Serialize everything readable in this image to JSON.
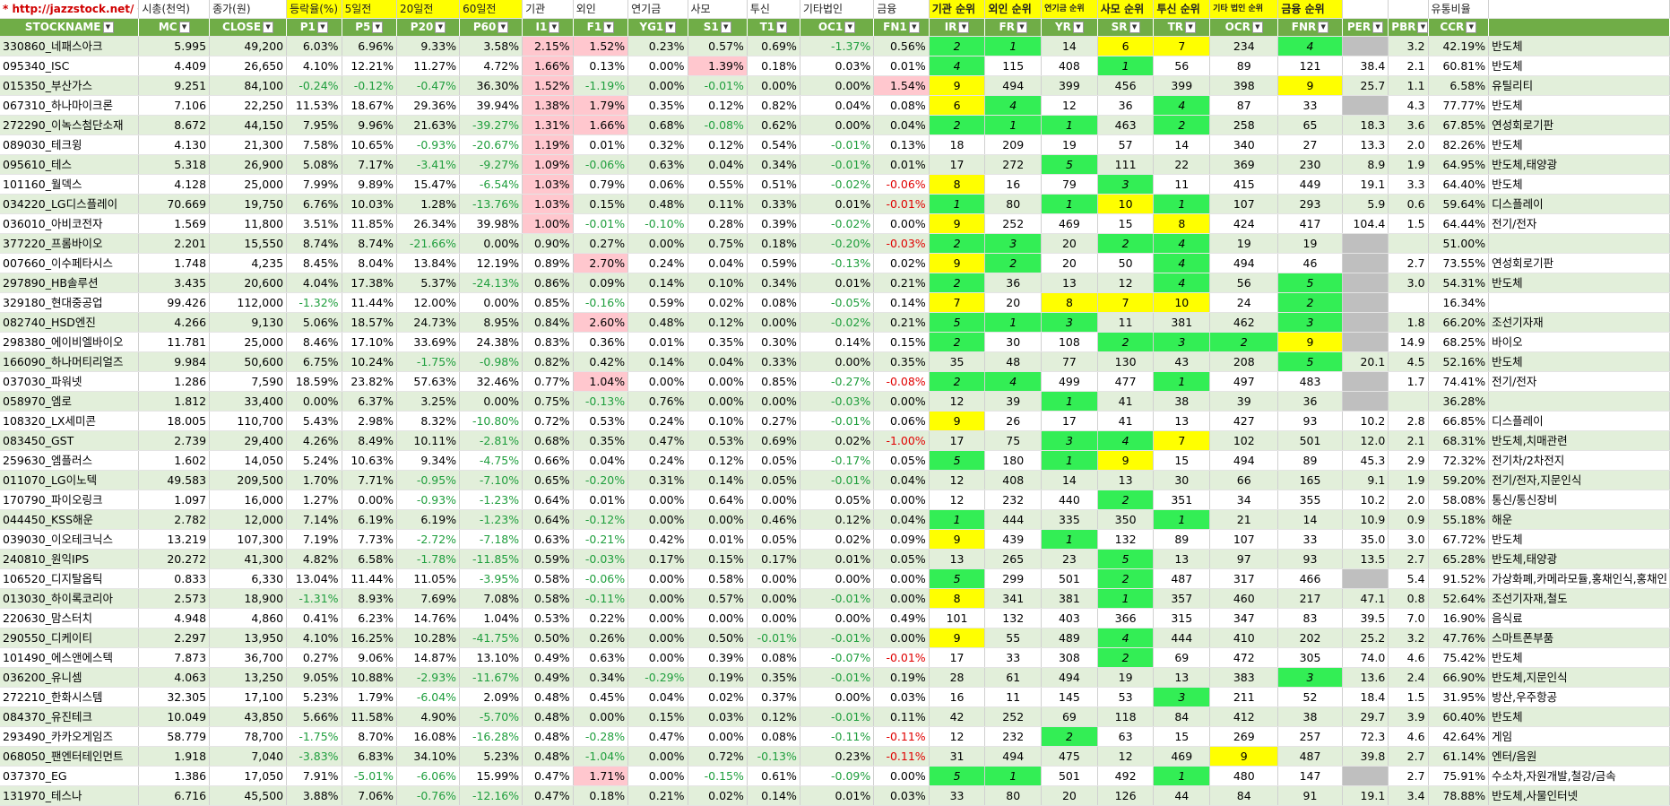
{
  "top_header": [
    "* http://jazzstock.net/ 활용",
    "시총(천억)",
    "종가(원)",
    "등락율(%)",
    "5일전",
    "20일전",
    "60일전",
    "기관",
    "외인",
    "연기금",
    "사모",
    "투신",
    "기타법인",
    "금융",
    "기관 순위",
    "외인 순위",
    "연기금 순위",
    "사모 순위",
    "투신 순위",
    "기타 법인 순위",
    "금융 순위",
    "",
    "",
    "유통비율",
    ""
  ],
  "columns": [
    "STOCKNAME",
    "MC",
    "CLOSE",
    "P1",
    "P5",
    "P20",
    "P60",
    "I1",
    "F1",
    "YG1",
    "S1",
    "T1",
    "OC1",
    "FN1",
    "IR",
    "FR",
    "YR",
    "SR",
    "TR",
    "OCR",
    "FNR",
    "PER",
    "PBR",
    "CCR",
    ""
  ],
  "rows": [
    [
      "330860_네패스아크",
      "5.995",
      "49,200",
      "6.03%",
      "6.96%",
      "9.33%",
      "3.58%",
      "2.15%",
      "1.52%",
      "0.23%",
      "0.57%",
      "0.69%",
      "-1.37%",
      "0.56%",
      "2",
      "1",
      "14",
      "6",
      "7",
      "234",
      "4",
      "",
      "3.2",
      "42.19%",
      "반도체"
    ],
    [
      "095340_ISC",
      "4.409",
      "26,650",
      "4.10%",
      "12.21%",
      "11.27%",
      "4.72%",
      "1.66%",
      "0.13%",
      "0.00%",
      "1.39%",
      "0.18%",
      "0.03%",
      "0.01%",
      "4",
      "115",
      "408",
      "1",
      "56",
      "89",
      "121",
      "38.4",
      "2.1",
      "60.81%",
      "반도체"
    ],
    [
      "015350_부산가스",
      "9.251",
      "84,100",
      "-0.24%",
      "-0.12%",
      "-0.47%",
      "36.30%",
      "1.52%",
      "-1.19%",
      "0.00%",
      "-0.01%",
      "0.00%",
      "0.00%",
      "1.54%",
      "9",
      "494",
      "399",
      "456",
      "399",
      "398",
      "9",
      "25.7",
      "1.1",
      "6.58%",
      "유틸리티"
    ],
    [
      "067310_하나마이크론",
      "7.106",
      "22,250",
      "11.53%",
      "18.67%",
      "29.36%",
      "39.94%",
      "1.38%",
      "1.79%",
      "0.35%",
      "0.12%",
      "0.82%",
      "0.04%",
      "0.08%",
      "6",
      "4",
      "12",
      "36",
      "4",
      "87",
      "33",
      "",
      "4.3",
      "77.77%",
      "반도체"
    ],
    [
      "272290_이녹스첨단소재",
      "8.672",
      "44,150",
      "7.95%",
      "9.96%",
      "21.63%",
      "-39.27%",
      "1.31%",
      "1.66%",
      "0.68%",
      "-0.08%",
      "0.62%",
      "0.00%",
      "0.04%",
      "2",
      "1",
      "1",
      "463",
      "2",
      "258",
      "65",
      "18.3",
      "3.6",
      "67.85%",
      "연성회로기판"
    ],
    [
      "089030_테크윙",
      "4.130",
      "21,300",
      "7.58%",
      "10.65%",
      "-0.93%",
      "-20.67%",
      "1.19%",
      "0.01%",
      "0.32%",
      "0.12%",
      "0.54%",
      "-0.01%",
      "0.13%",
      "18",
      "209",
      "19",
      "57",
      "14",
      "340",
      "27",
      "13.3",
      "2.0",
      "82.26%",
      "반도체"
    ],
    [
      "095610_테스",
      "5.318",
      "26,900",
      "5.08%",
      "7.17%",
      "-3.41%",
      "-9.27%",
      "1.09%",
      "-0.06%",
      "0.63%",
      "0.04%",
      "0.34%",
      "-0.01%",
      "0.01%",
      "17",
      "272",
      "5",
      "111",
      "22",
      "369",
      "230",
      "8.9",
      "1.9",
      "64.95%",
      "반도체,태양광"
    ],
    [
      "101160_월덱스",
      "4.128",
      "25,000",
      "7.99%",
      "9.89%",
      "15.47%",
      "-6.54%",
      "1.03%",
      "0.79%",
      "0.06%",
      "0.55%",
      "0.51%",
      "-0.02%",
      "-0.06%",
      "8",
      "16",
      "79",
      "3",
      "11",
      "415",
      "449",
      "19.1",
      "3.3",
      "64.40%",
      "반도체"
    ],
    [
      "034220_LG디스플레이",
      "70.669",
      "19,750",
      "6.76%",
      "10.03%",
      "1.28%",
      "-13.76%",
      "1.03%",
      "0.15%",
      "0.48%",
      "0.11%",
      "0.33%",
      "0.01%",
      "-0.01%",
      "1",
      "80",
      "1",
      "10",
      "1",
      "107",
      "293",
      "5.9",
      "0.6",
      "59.64%",
      "디스플레이"
    ],
    [
      "036010_아비코전자",
      "1.569",
      "11,800",
      "3.51%",
      "11.85%",
      "26.34%",
      "39.98%",
      "1.00%",
      "-0.01%",
      "-0.10%",
      "0.28%",
      "0.39%",
      "-0.02%",
      "0.00%",
      "9",
      "252",
      "469",
      "15",
      "8",
      "424",
      "417",
      "104.4",
      "1.5",
      "64.44%",
      "전기/전자"
    ],
    [
      "377220_프롬바이오",
      "2.201",
      "15,550",
      "8.74%",
      "8.74%",
      "-21.66%",
      "0.00%",
      "0.90%",
      "0.27%",
      "0.00%",
      "0.75%",
      "0.18%",
      "-0.20%",
      "-0.03%",
      "2",
      "3",
      "20",
      "2",
      "4",
      "19",
      "19",
      "",
      "",
      "51.00%",
      ""
    ],
    [
      "007660_이수페타시스",
      "1.748",
      "4,235",
      "8.45%",
      "8.04%",
      "13.84%",
      "12.19%",
      "0.89%",
      "2.70%",
      "0.24%",
      "0.04%",
      "0.59%",
      "-0.13%",
      "0.02%",
      "9",
      "2",
      "20",
      "50",
      "4",
      "494",
      "46",
      "",
      "2.7",
      "73.55%",
      "연성회로기판"
    ],
    [
      "297890_HB솔루션",
      "3.435",
      "20,600",
      "4.04%",
      "17.38%",
      "5.37%",
      "-24.13%",
      "0.86%",
      "0.09%",
      "0.14%",
      "0.10%",
      "0.34%",
      "0.01%",
      "0.21%",
      "2",
      "36",
      "13",
      "12",
      "4",
      "56",
      "5",
      "",
      "3.0",
      "54.31%",
      "반도체"
    ],
    [
      "329180_현대중공업",
      "99.426",
      "112,000",
      "-1.32%",
      "11.44%",
      "12.00%",
      "0.00%",
      "0.85%",
      "-0.16%",
      "0.59%",
      "0.02%",
      "0.08%",
      "-0.05%",
      "0.14%",
      "7",
      "20",
      "8",
      "7",
      "10",
      "24",
      "2",
      "",
      "",
      "16.34%",
      ""
    ],
    [
      "082740_HSD엔진",
      "4.266",
      "9,130",
      "5.06%",
      "18.57%",
      "24.73%",
      "8.95%",
      "0.84%",
      "2.60%",
      "0.48%",
      "0.12%",
      "0.00%",
      "-0.02%",
      "0.21%",
      "5",
      "1",
      "3",
      "11",
      "381",
      "462",
      "3",
      "",
      "1.8",
      "66.20%",
      "조선기자재"
    ],
    [
      "298380_에이비엘바이오",
      "11.781",
      "25,000",
      "8.46%",
      "17.10%",
      "33.69%",
      "24.38%",
      "0.83%",
      "0.36%",
      "0.01%",
      "0.35%",
      "0.30%",
      "0.14%",
      "0.15%",
      "2",
      "30",
      "108",
      "2",
      "3",
      "2",
      "9",
      "",
      "14.9",
      "68.25%",
      "바이오"
    ],
    [
      "166090_하나머티리얼즈",
      "9.984",
      "50,600",
      "6.75%",
      "10.24%",
      "-1.75%",
      "-0.98%",
      "0.82%",
      "0.42%",
      "0.14%",
      "0.04%",
      "0.33%",
      "0.00%",
      "0.35%",
      "35",
      "48",
      "77",
      "130",
      "43",
      "208",
      "5",
      "20.1",
      "4.5",
      "52.16%",
      "반도체"
    ],
    [
      "037030_파워넷",
      "1.286",
      "7,590",
      "18.59%",
      "23.82%",
      "57.63%",
      "32.46%",
      "0.77%",
      "1.04%",
      "0.00%",
      "0.00%",
      "0.85%",
      "-0.27%",
      "-0.08%",
      "2",
      "4",
      "499",
      "477",
      "1",
      "497",
      "483",
      "",
      "1.7",
      "74.41%",
      "전기/전자"
    ],
    [
      "058970_엠로",
      "1.812",
      "33,400",
      "0.00%",
      "6.37%",
      "3.25%",
      "0.00%",
      "0.75%",
      "-0.13%",
      "0.76%",
      "0.00%",
      "0.00%",
      "-0.03%",
      "0.00%",
      "12",
      "39",
      "1",
      "41",
      "38",
      "39",
      "36",
      "",
      "",
      "36.28%",
      ""
    ],
    [
      "108320_LX세미콘",
      "18.005",
      "110,700",
      "5.43%",
      "2.98%",
      "8.32%",
      "-10.80%",
      "0.72%",
      "0.53%",
      "0.24%",
      "0.10%",
      "0.27%",
      "-0.01%",
      "0.06%",
      "9",
      "26",
      "17",
      "41",
      "13",
      "427",
      "93",
      "10.2",
      "2.8",
      "66.85%",
      "디스플레이"
    ],
    [
      "083450_GST",
      "2.739",
      "29,400",
      "4.26%",
      "8.49%",
      "10.11%",
      "-2.81%",
      "0.68%",
      "0.35%",
      "0.47%",
      "0.53%",
      "0.69%",
      "0.02%",
      "-1.00%",
      "17",
      "75",
      "3",
      "4",
      "7",
      "102",
      "501",
      "12.0",
      "2.1",
      "68.31%",
      "반도체,치매관련"
    ],
    [
      "259630_엠플러스",
      "1.602",
      "14,050",
      "5.24%",
      "10.63%",
      "9.34%",
      "-4.75%",
      "0.66%",
      "0.04%",
      "0.24%",
      "0.12%",
      "0.05%",
      "-0.17%",
      "0.05%",
      "5",
      "180",
      "1",
      "9",
      "15",
      "494",
      "89",
      "45.3",
      "2.9",
      "72.32%",
      "전기차/2차전지"
    ],
    [
      "011070_LG이노텍",
      "49.583",
      "209,500",
      "1.70%",
      "7.71%",
      "-0.95%",
      "-7.10%",
      "0.65%",
      "-0.20%",
      "0.31%",
      "0.14%",
      "0.05%",
      "-0.01%",
      "0.04%",
      "12",
      "408",
      "14",
      "13",
      "30",
      "66",
      "165",
      "9.1",
      "1.9",
      "59.20%",
      "전기/전자,지문인식"
    ],
    [
      "170790_파이오링크",
      "1.097",
      "16,000",
      "1.27%",
      "0.00%",
      "-0.93%",
      "-1.23%",
      "0.64%",
      "0.01%",
      "0.00%",
      "0.64%",
      "0.00%",
      "0.05%",
      "0.00%",
      "12",
      "232",
      "440",
      "2",
      "351",
      "34",
      "355",
      "10.2",
      "2.0",
      "58.08%",
      "통신/통신장비"
    ],
    [
      "044450_KSS해운",
      "2.782",
      "12,000",
      "7.14%",
      "6.19%",
      "6.19%",
      "-1.23%",
      "0.64%",
      "-0.12%",
      "0.00%",
      "0.00%",
      "0.46%",
      "0.12%",
      "0.04%",
      "1",
      "444",
      "335",
      "350",
      "1",
      "21",
      "14",
      "10.9",
      "0.9",
      "55.18%",
      "해운"
    ],
    [
      "039030_이오테크닉스",
      "13.219",
      "107,300",
      "7.19%",
      "7.73%",
      "-2.72%",
      "-7.18%",
      "0.63%",
      "-0.21%",
      "0.42%",
      "0.01%",
      "0.05%",
      "0.02%",
      "0.09%",
      "9",
      "439",
      "1",
      "132",
      "89",
      "107",
      "33",
      "35.0",
      "3.0",
      "67.72%",
      "반도체"
    ],
    [
      "240810_원익IPS",
      "20.272",
      "41,300",
      "4.82%",
      "6.58%",
      "-1.78%",
      "-11.85%",
      "0.59%",
      "-0.03%",
      "0.17%",
      "0.15%",
      "0.17%",
      "0.01%",
      "0.05%",
      "13",
      "265",
      "23",
      "5",
      "13",
      "97",
      "93",
      "13.5",
      "2.7",
      "65.28%",
      "반도체,태양광"
    ],
    [
      "106520_디지탈옵틱",
      "0.833",
      "6,330",
      "13.04%",
      "11.44%",
      "11.05%",
      "-3.95%",
      "0.58%",
      "-0.06%",
      "0.00%",
      "0.58%",
      "0.00%",
      "0.00%",
      "0.00%",
      "5",
      "299",
      "501",
      "2",
      "487",
      "317",
      "466",
      "",
      "5.4",
      "91.52%",
      "가상화폐,카메라모듈,홍채인식,홍채인"
    ],
    [
      "013030_하이록코리아",
      "2.573",
      "18,900",
      "-1.31%",
      "8.93%",
      "7.69%",
      "7.08%",
      "0.58%",
      "-0.11%",
      "0.00%",
      "0.57%",
      "0.00%",
      "-0.01%",
      "0.00%",
      "8",
      "341",
      "381",
      "1",
      "357",
      "460",
      "217",
      "47.1",
      "0.8",
      "52.64%",
      "조선기자재,철도"
    ],
    [
      "220630_맘스터치",
      "4.948",
      "4,860",
      "0.41%",
      "6.23%",
      "14.76%",
      "1.04%",
      "0.53%",
      "0.22%",
      "0.00%",
      "0.00%",
      "0.00%",
      "0.00%",
      "0.49%",
      "101",
      "132",
      "403",
      "366",
      "315",
      "347",
      "83",
      "39.5",
      "7.0",
      "16.90%",
      "음식료"
    ],
    [
      "290550_디케이티",
      "2.297",
      "13,950",
      "4.10%",
      "16.25%",
      "10.28%",
      "-41.75%",
      "0.50%",
      "0.26%",
      "0.00%",
      "0.50%",
      "-0.01%",
      "-0.01%",
      "0.00%",
      "9",
      "55",
      "489",
      "4",
      "444",
      "410",
      "202",
      "25.2",
      "3.2",
      "47.76%",
      "스마트폰부품"
    ],
    [
      "101490_에스앤에스텍",
      "7.873",
      "36,700",
      "0.27%",
      "9.06%",
      "14.87%",
      "13.10%",
      "0.49%",
      "0.63%",
      "0.00%",
      "0.39%",
      "0.08%",
      "-0.07%",
      "-0.01%",
      "17",
      "33",
      "308",
      "2",
      "69",
      "472",
      "305",
      "74.0",
      "4.6",
      "75.42%",
      "반도체"
    ],
    [
      "036200_유니셈",
      "4.063",
      "13,250",
      "9.05%",
      "10.88%",
      "-2.93%",
      "-11.67%",
      "0.49%",
      "0.34%",
      "-0.29%",
      "0.19%",
      "0.35%",
      "-0.01%",
      "0.19%",
      "28",
      "61",
      "494",
      "19",
      "13",
      "383",
      "3",
      "13.6",
      "2.4",
      "66.90%",
      "반도체,지문인식"
    ],
    [
      "272210_한화시스템",
      "32.305",
      "17,100",
      "5.23%",
      "1.79%",
      "-6.04%",
      "2.09%",
      "0.48%",
      "0.45%",
      "0.04%",
      "0.02%",
      "0.37%",
      "0.00%",
      "0.03%",
      "16",
      "11",
      "145",
      "53",
      "3",
      "211",
      "52",
      "18.4",
      "1.5",
      "31.95%",
      "방산,우주항공"
    ],
    [
      "084370_유진테크",
      "10.049",
      "43,850",
      "5.66%",
      "11.58%",
      "4.90%",
      "-5.70%",
      "0.48%",
      "0.00%",
      "0.15%",
      "0.03%",
      "0.12%",
      "-0.01%",
      "0.11%",
      "42",
      "252",
      "69",
      "118",
      "84",
      "412",
      "38",
      "29.7",
      "3.9",
      "60.40%",
      "반도체"
    ],
    [
      "293490_카카오게임즈",
      "58.779",
      "78,700",
      "-1.75%",
      "8.70%",
      "16.08%",
      "-16.28%",
      "0.48%",
      "-0.28%",
      "0.47%",
      "0.00%",
      "0.08%",
      "-0.11%",
      "-0.11%",
      "12",
      "232",
      "2",
      "63",
      "15",
      "269",
      "257",
      "72.3",
      "4.6",
      "42.64%",
      "게임"
    ],
    [
      "068050_팬엔터테인먼트",
      "1.918",
      "7,040",
      "-3.83%",
      "6.83%",
      "34.10%",
      "5.23%",
      "0.48%",
      "-1.04%",
      "0.00%",
      "0.72%",
      "-0.13%",
      "0.23%",
      "-0.11%",
      "31",
      "494",
      "475",
      "12",
      "469",
      "9",
      "487",
      "39.8",
      "2.7",
      "61.14%",
      "엔터/음원"
    ],
    [
      "037370_EG",
      "1.386",
      "17,050",
      "7.91%",
      "-5.01%",
      "-6.06%",
      "15.99%",
      "0.47%",
      "1.71%",
      "0.00%",
      "-0.15%",
      "0.61%",
      "-0.09%",
      "0.00%",
      "5",
      "1",
      "501",
      "492",
      "1",
      "480",
      "147",
      "",
      "2.7",
      "75.91%",
      "수소차,자원개발,철강/금속"
    ],
    [
      "131970_테스나",
      "6.716",
      "45,500",
      "3.88%",
      "7.06%",
      "-0.76%",
      "-12.16%",
      "0.47%",
      "0.18%",
      "0.21%",
      "0.02%",
      "0.14%",
      "0.01%",
      "0.03%",
      "33",
      "80",
      "20",
      "126",
      "44",
      "84",
      "91",
      "19.1",
      "3.4",
      "78.88%",
      "반도체,사물인터넷"
    ]
  ],
  "colors": {
    "header_green": "#70ad47",
    "row_alt": "#e2efda",
    "rank_green": "#33ee55",
    "rank_yellow": "#ffff00",
    "pink": "#ffc7ce",
    "neg_green": "#1f9e3d",
    "neg_red": "#e00000",
    "gray": "#bfbfbf"
  }
}
